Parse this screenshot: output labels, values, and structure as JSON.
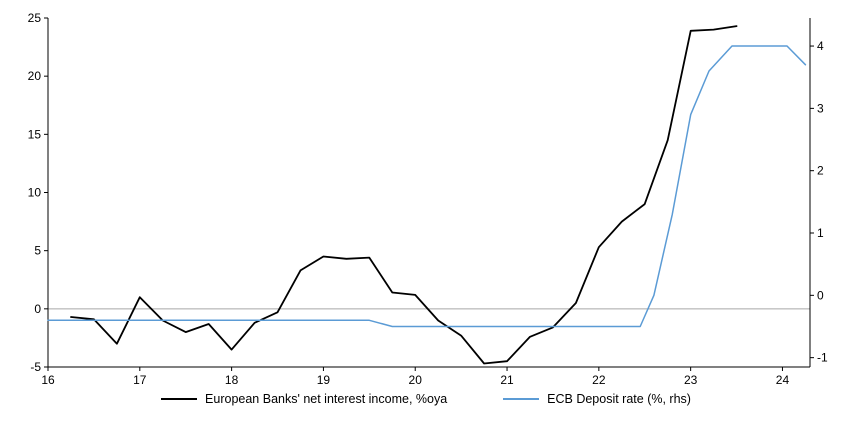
{
  "chart_data": {
    "type": "line",
    "title": "",
    "x_axis": {
      "min": 16,
      "max": 24.3,
      "ticks": [
        16,
        17,
        18,
        19,
        20,
        21,
        22,
        23,
        24
      ]
    },
    "left_axis": {
      "min": -5,
      "max": 25,
      "ticks": [
        -5,
        0,
        5,
        10,
        15,
        20,
        25
      ]
    },
    "right_axis": {
      "min": -1.15,
      "max": 4.45,
      "ticks": [
        -1,
        0,
        1,
        2,
        3,
        4
      ]
    },
    "grid": "zero-line-only",
    "legend_position": "bottom-center",
    "colors": {
      "axis": "#000000",
      "zero_line": "#a6a6a6"
    },
    "series": [
      {
        "name": "European Banks' net interest income, %oya",
        "axis": "left",
        "color": "#000000",
        "width": 1.8,
        "points": [
          [
            16.25,
            -0.7
          ],
          [
            16.5,
            -0.9
          ],
          [
            16.75,
            -3.0
          ],
          [
            17.0,
            1.0
          ],
          [
            17.25,
            -1.0
          ],
          [
            17.5,
            -2.0
          ],
          [
            17.75,
            -1.3
          ],
          [
            18.0,
            -3.5
          ],
          [
            18.25,
            -1.2
          ],
          [
            18.5,
            -0.3
          ],
          [
            18.75,
            3.3
          ],
          [
            19.0,
            4.5
          ],
          [
            19.25,
            4.3
          ],
          [
            19.5,
            4.4
          ],
          [
            19.75,
            1.4
          ],
          [
            20.0,
            1.2
          ],
          [
            20.25,
            -1.0
          ],
          [
            20.5,
            -2.3
          ],
          [
            20.75,
            -4.7
          ],
          [
            21.0,
            -4.5
          ],
          [
            21.25,
            -2.4
          ],
          [
            21.5,
            -1.6
          ],
          [
            21.75,
            0.5
          ],
          [
            22.0,
            5.3
          ],
          [
            22.25,
            7.5
          ],
          [
            22.5,
            9.0
          ],
          [
            22.75,
            14.5
          ],
          [
            23.0,
            23.9
          ],
          [
            23.25,
            24.0
          ],
          [
            23.5,
            24.3
          ]
        ]
      },
      {
        "name": "ECB Deposit rate (%, rhs)",
        "axis": "right",
        "color": "#5B9BD5",
        "width": 1.5,
        "points": [
          [
            16.0,
            -0.4
          ],
          [
            19.5,
            -0.4
          ],
          [
            19.75,
            -0.5
          ],
          [
            22.45,
            -0.5
          ],
          [
            22.6,
            0.0
          ],
          [
            22.8,
            1.3
          ],
          [
            23.0,
            2.9
          ],
          [
            23.2,
            3.6
          ],
          [
            23.45,
            4.0
          ],
          [
            24.05,
            4.0
          ],
          [
            24.25,
            3.7
          ]
        ]
      }
    ]
  }
}
